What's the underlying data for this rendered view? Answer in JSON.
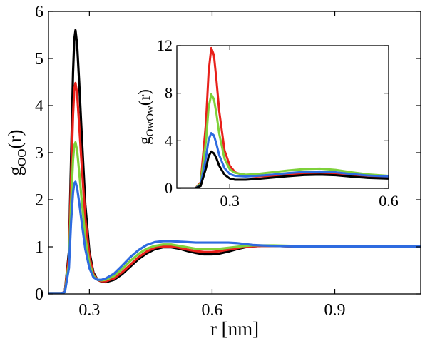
{
  "chart_data": [
    {
      "type": "line",
      "xlabel": "r [nm]",
      "ylabel_main": "g",
      "ylabel_sub": "OO",
      "ylabel_tail": "(r)",
      "xlim": [
        0.2,
        1.11
      ],
      "ylim": [
        0,
        6
      ],
      "xticks": [
        0.3,
        0.6,
        0.9
      ],
      "xtick_labels": [
        "0.3",
        "0.6",
        "0.9"
      ],
      "yticks": [
        0,
        1,
        2,
        3,
        4,
        5,
        6
      ],
      "ytick_labels": [
        "0",
        "1",
        "2",
        "3",
        "4",
        "5",
        "6"
      ],
      "grid": false,
      "series": [
        {
          "color": "#000000",
          "x": [
            0.2,
            0.23,
            0.24,
            0.25,
            0.255,
            0.26,
            0.263,
            0.266,
            0.27,
            0.275,
            0.28,
            0.29,
            0.3,
            0.31,
            0.32,
            0.33,
            0.34,
            0.36,
            0.38,
            0.4,
            0.42,
            0.44,
            0.46,
            0.48,
            0.5,
            0.52,
            0.54,
            0.56,
            0.58,
            0.6,
            0.62,
            0.64,
            0.66,
            0.68,
            0.7,
            0.72,
            0.75,
            0.8,
            0.85,
            0.9,
            0.95,
            1.0,
            1.05,
            1.11
          ],
          "y": [
            0,
            0,
            0.05,
            0.9,
            2.8,
            4.7,
            5.4,
            5.6,
            5.3,
            4.5,
            3.6,
            1.9,
            0.9,
            0.45,
            0.3,
            0.26,
            0.25,
            0.3,
            0.42,
            0.58,
            0.74,
            0.86,
            0.95,
            0.99,
            0.99,
            0.96,
            0.91,
            0.87,
            0.84,
            0.84,
            0.86,
            0.9,
            0.95,
            0.99,
            1.01,
            1.02,
            1.02,
            1.01,
            1.0,
            1.0,
            1.0,
            1.0,
            1.0,
            1.0
          ]
        },
        {
          "color": "#e8201a",
          "x": [
            0.2,
            0.23,
            0.24,
            0.25,
            0.255,
            0.26,
            0.263,
            0.266,
            0.27,
            0.275,
            0.28,
            0.29,
            0.3,
            0.31,
            0.32,
            0.33,
            0.34,
            0.36,
            0.38,
            0.4,
            0.42,
            0.44,
            0.46,
            0.48,
            0.5,
            0.52,
            0.54,
            0.56,
            0.58,
            0.6,
            0.62,
            0.64,
            0.66,
            0.68,
            0.7,
            0.72,
            0.75,
            0.8,
            0.85,
            0.9,
            0.95,
            1.0,
            1.05,
            1.11
          ],
          "y": [
            0,
            0,
            0.05,
            0.8,
            2.4,
            3.8,
            4.35,
            4.48,
            4.25,
            3.6,
            2.9,
            1.6,
            0.8,
            0.42,
            0.3,
            0.27,
            0.27,
            0.33,
            0.46,
            0.62,
            0.78,
            0.9,
            0.98,
            1.01,
            1.01,
            0.98,
            0.94,
            0.91,
            0.89,
            0.89,
            0.91,
            0.94,
            0.97,
            1.0,
            1.01,
            1.02,
            1.02,
            1.01,
            1.0,
            1.0,
            1.0,
            1.0,
            1.0,
            1.0
          ]
        },
        {
          "color": "#7fd13a",
          "x": [
            0.2,
            0.23,
            0.24,
            0.25,
            0.255,
            0.26,
            0.263,
            0.266,
            0.27,
            0.275,
            0.28,
            0.29,
            0.3,
            0.31,
            0.32,
            0.33,
            0.34,
            0.36,
            0.38,
            0.4,
            0.42,
            0.44,
            0.46,
            0.48,
            0.5,
            0.52,
            0.54,
            0.56,
            0.58,
            0.6,
            0.62,
            0.64,
            0.66,
            0.68,
            0.7,
            0.72,
            0.75,
            0.8,
            0.85,
            0.9,
            0.95,
            1.0,
            1.05,
            1.11
          ],
          "y": [
            0,
            0,
            0.04,
            0.65,
            1.9,
            2.85,
            3.15,
            3.22,
            3.05,
            2.6,
            2.1,
            1.2,
            0.65,
            0.38,
            0.3,
            0.29,
            0.3,
            0.38,
            0.53,
            0.7,
            0.85,
            0.96,
            1.02,
            1.05,
            1.05,
            1.02,
            0.99,
            0.96,
            0.95,
            0.95,
            0.96,
            0.98,
            1.0,
            1.02,
            1.03,
            1.03,
            1.03,
            1.02,
            1.01,
            1.0,
            1.0,
            1.0,
            1.0,
            1.0
          ]
        },
        {
          "color": "#2e6be0",
          "x": [
            0.2,
            0.23,
            0.24,
            0.25,
            0.255,
            0.26,
            0.263,
            0.266,
            0.27,
            0.275,
            0.28,
            0.29,
            0.3,
            0.31,
            0.32,
            0.33,
            0.34,
            0.36,
            0.38,
            0.4,
            0.42,
            0.44,
            0.46,
            0.48,
            0.5,
            0.52,
            0.54,
            0.56,
            0.58,
            0.6,
            0.62,
            0.64,
            0.66,
            0.68,
            0.7,
            0.72,
            0.75,
            0.8,
            0.85,
            0.9,
            0.95,
            1.0,
            1.05,
            1.11
          ],
          "y": [
            0,
            0,
            0.04,
            0.55,
            1.5,
            2.15,
            2.35,
            2.38,
            2.25,
            1.95,
            1.6,
            0.95,
            0.55,
            0.35,
            0.3,
            0.3,
            0.33,
            0.43,
            0.6,
            0.78,
            0.93,
            1.04,
            1.1,
            1.12,
            1.12,
            1.11,
            1.1,
            1.09,
            1.09,
            1.09,
            1.09,
            1.09,
            1.08,
            1.06,
            1.04,
            1.03,
            1.02,
            1.01,
            1.01,
            1.01,
            1.01,
            1.01,
            1.01,
            1.01
          ]
        }
      ]
    },
    {
      "type": "line",
      "ylabel_main": "g",
      "ylabel_sub": "OwOw",
      "ylabel_tail": "(r)",
      "xlim": [
        0.2,
        0.6
      ],
      "ylim": [
        0,
        12
      ],
      "xticks": [
        0.3,
        0.6
      ],
      "xtick_labels": [
        "0.3",
        "0.6"
      ],
      "yticks": [
        0,
        4,
        8,
        12
      ],
      "ytick_labels": [
        "0",
        "4",
        "8",
        "12"
      ],
      "grid": false,
      "series": [
        {
          "color": "#e8201a",
          "x": [
            0.2,
            0.235,
            0.245,
            0.255,
            0.26,
            0.265,
            0.27,
            0.275,
            0.28,
            0.29,
            0.3,
            0.31,
            0.33,
            0.35,
            0.38,
            0.41,
            0.44,
            0.47,
            0.5,
            0.53,
            0.56,
            0.6
          ],
          "y": [
            0,
            0,
            0.5,
            5.5,
            9.8,
            11.8,
            11.2,
            9.0,
            6.5,
            3.2,
            1.9,
            1.35,
            1.05,
            1.0,
            1.05,
            1.15,
            1.25,
            1.3,
            1.25,
            1.12,
            0.98,
            0.9
          ]
        },
        {
          "color": "#7fd13a",
          "x": [
            0.2,
            0.235,
            0.245,
            0.255,
            0.26,
            0.265,
            0.27,
            0.275,
            0.28,
            0.29,
            0.3,
            0.31,
            0.33,
            0.35,
            0.38,
            0.41,
            0.44,
            0.47,
            0.5,
            0.53,
            0.56,
            0.6
          ],
          "y": [
            0,
            0,
            0.4,
            4.0,
            6.8,
            7.9,
            7.5,
            6.2,
            4.6,
            2.5,
            1.6,
            1.3,
            1.15,
            1.2,
            1.35,
            1.5,
            1.62,
            1.66,
            1.55,
            1.35,
            1.18,
            1.05
          ]
        },
        {
          "color": "#2e6be0",
          "x": [
            0.2,
            0.235,
            0.245,
            0.255,
            0.26,
            0.265,
            0.27,
            0.275,
            0.28,
            0.29,
            0.3,
            0.31,
            0.33,
            0.35,
            0.38,
            0.41,
            0.44,
            0.47,
            0.5,
            0.53,
            0.56,
            0.6
          ],
          "y": [
            0,
            0,
            0.3,
            2.6,
            4.1,
            4.65,
            4.45,
            3.7,
            2.8,
            1.7,
            1.2,
            1.05,
            1.0,
            1.05,
            1.15,
            1.28,
            1.38,
            1.42,
            1.35,
            1.2,
            1.08,
            1.0
          ]
        },
        {
          "color": "#000000",
          "x": [
            0.2,
            0.235,
            0.245,
            0.255,
            0.26,
            0.265,
            0.27,
            0.275,
            0.28,
            0.29,
            0.3,
            0.31,
            0.33,
            0.35,
            0.38,
            0.41,
            0.44,
            0.47,
            0.5,
            0.53,
            0.56,
            0.6
          ],
          "y": [
            0,
            0,
            0.2,
            1.7,
            2.7,
            3.1,
            2.95,
            2.5,
            1.9,
            1.15,
            0.82,
            0.72,
            0.72,
            0.78,
            0.9,
            1.02,
            1.12,
            1.15,
            1.1,
            0.98,
            0.88,
            0.82
          ]
        }
      ]
    }
  ]
}
